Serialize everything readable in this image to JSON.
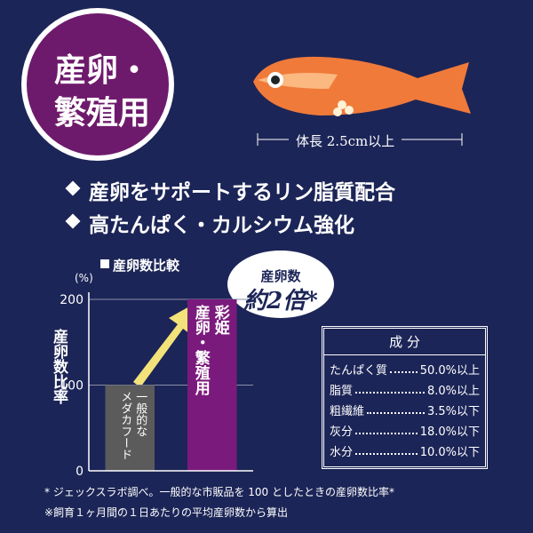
{
  "badge": [
    "産卵・",
    "繁殖用"
  ],
  "fish_caption": "体長 2.5cm以上",
  "bullets": [
    "産卵をサポートするリン脂質配合",
    "高たんぱく・カルシウム強化"
  ],
  "chart_data": {
    "type": "bar",
    "title": "産卵数比較",
    "y_unit": "(%)",
    "y_label": "産卵数比率",
    "categories": [
      "一般的な\nメダカフード",
      "彩姫\n産卵・繁殖用"
    ],
    "values": [
      100,
      200
    ],
    "colors": [
      "#5b5b5b",
      "#7b1a7d"
    ],
    "ylim": [
      0,
      200
    ],
    "yticks": [
      0,
      100,
      200
    ],
    "grid": true,
    "annotation": [
      "産卵数",
      "約2倍*"
    ]
  },
  "composition": {
    "title": "成 分",
    "rows": [
      [
        "たんぱく質",
        "50.0%以上"
      ],
      [
        "脂質",
        "8.0%以上"
      ],
      [
        "粗繊維",
        "3.5%以下"
      ],
      [
        "灰分",
        "18.0%以下"
      ],
      [
        "水分",
        "10.0%以下"
      ]
    ]
  },
  "footnotes": [
    "* ジェックスラボ調べ。一般的な市販品を 100 としたときの産卵数比率*",
    "※飼育１ヶ月間の１日あたりの平均産卵数から算出"
  ]
}
